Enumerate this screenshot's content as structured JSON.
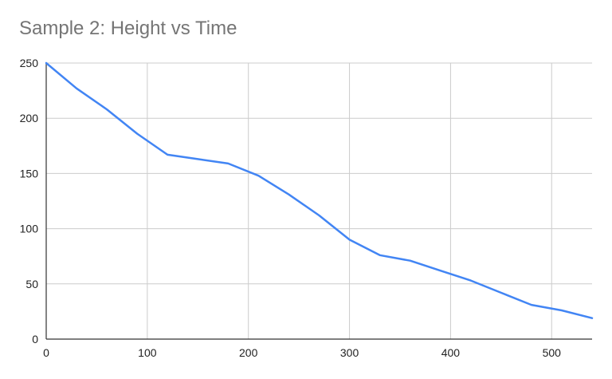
{
  "chart_data": {
    "type": "line",
    "title": "Sample 2: Height vs Time",
    "xlabel": "",
    "ylabel": "",
    "xlim": [
      0,
      540
    ],
    "ylim": [
      0,
      250
    ],
    "xticks": [
      0,
      100,
      200,
      300,
      400,
      500
    ],
    "yticks": [
      0,
      50,
      100,
      150,
      200,
      250
    ],
    "xtick_labels": [
      "0",
      "100",
      "200",
      "300",
      "400",
      "500"
    ],
    "ytick_labels": [
      "0",
      "50",
      "100",
      "150",
      "200",
      "250"
    ],
    "grid": true,
    "legend": "none",
    "series": [
      {
        "color": "#4285f4",
        "x": [
          0,
          30,
          60,
          90,
          120,
          150,
          180,
          210,
          240,
          270,
          300,
          330,
          360,
          390,
          420,
          450,
          480,
          510,
          540
        ],
        "y": [
          250,
          227,
          208,
          186,
          167,
          163,
          159,
          148,
          131,
          112,
          90,
          76,
          71,
          62,
          53,
          42,
          31,
          26,
          19
        ]
      }
    ]
  }
}
